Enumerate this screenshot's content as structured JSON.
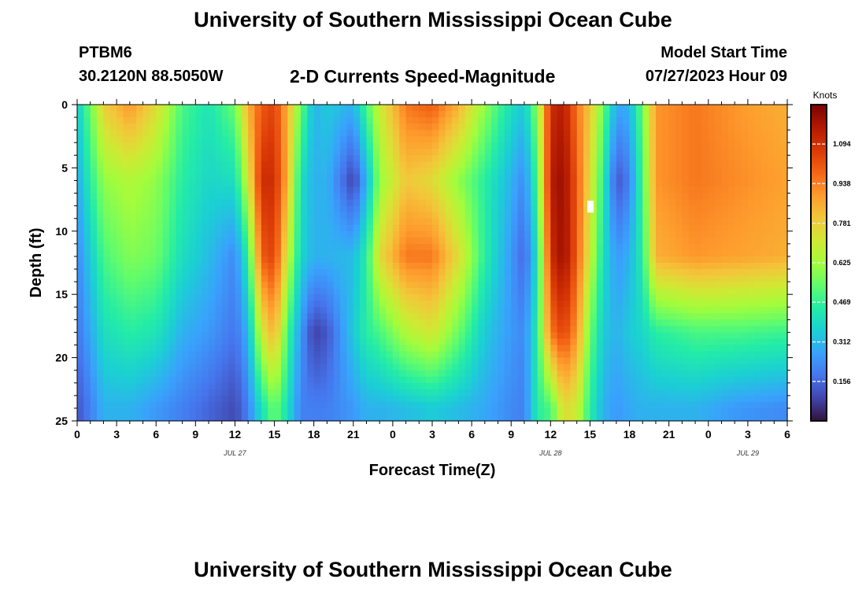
{
  "header": {
    "title": "University of Southern Mississippi Ocean Cube",
    "station": "PTBM6",
    "coords": "30.2120N  88.5050W",
    "subtitle": "2-D Currents Speed-Magnitude",
    "start_label": "Model Start Time",
    "start_value": "07/27/2023 Hour 09"
  },
  "footer": {
    "title": "University of Southern Mississippi Ocean Cube"
  },
  "chart_data": {
    "type": "heatmap",
    "xlabel": "Forecast Time(Z)",
    "ylabel": "Depth (ft)",
    "x_tick_labels": [
      "0",
      "3",
      "6",
      "9",
      "12",
      "15",
      "18",
      "21",
      "0",
      "3",
      "6",
      "9",
      "12",
      "15",
      "18",
      "21",
      "0",
      "3",
      "6"
    ],
    "x_range_hours": [
      0,
      54
    ],
    "day_labels": [
      {
        "label": "JUL 27",
        "at_hour": 12
      },
      {
        "label": "JUL 28",
        "at_hour": 36
      },
      {
        "label": "JUL 29",
        "at_hour": 51
      }
    ],
    "y_ticks": [
      0,
      5,
      10,
      15,
      20,
      25
    ],
    "ylim": [
      0,
      25
    ],
    "y_inverted": true,
    "colorbar": {
      "unit": "Knots",
      "range": [
        0,
        1.25
      ],
      "ticks": [
        "1.094",
        "0.938",
        "0.781",
        "0.625",
        "0.469",
        "0.312",
        "0.156"
      ],
      "colormap": [
        "#30123b",
        "#4145ab",
        "#4675ed",
        "#39a2fc",
        "#1bcfd4",
        "#24eca6",
        "#61fc6c",
        "#a4fc3b",
        "#d1e834",
        "#f3c63a",
        "#fe9b2d",
        "#f36315",
        "#d93806",
        "#b11901",
        "#7a0403"
      ]
    },
    "speed_by_time": [
      {
        "hour": 0,
        "d0": 0.35,
        "d6": 0.28,
        "d12": 0.22,
        "d18": 0.18,
        "d24": 0.12
      },
      {
        "hour": 1,
        "d0": 0.55,
        "d6": 0.45,
        "d12": 0.35,
        "d18": 0.28,
        "d24": 0.2
      },
      {
        "hour": 2,
        "d0": 0.78,
        "d6": 0.6,
        "d12": 0.5,
        "d18": 0.4,
        "d24": 0.3
      },
      {
        "hour": 4,
        "d0": 0.9,
        "d6": 0.65,
        "d12": 0.58,
        "d18": 0.45,
        "d24": 0.3
      },
      {
        "hour": 6,
        "d0": 0.75,
        "d6": 0.6,
        "d12": 0.55,
        "d18": 0.42,
        "d24": 0.25
      },
      {
        "hour": 8,
        "d0": 0.5,
        "d6": 0.45,
        "d12": 0.4,
        "d18": 0.3,
        "d24": 0.2
      },
      {
        "hour": 10,
        "d0": 0.42,
        "d6": 0.38,
        "d12": 0.32,
        "d18": 0.25,
        "d24": 0.15
      },
      {
        "hour": 12,
        "d0": 0.55,
        "d6": 0.4,
        "d12": 0.22,
        "d18": 0.18,
        "d24": 0.1
      },
      {
        "hour": 13,
        "d0": 0.85,
        "d6": 0.7,
        "d12": 0.45,
        "d18": 0.3,
        "d24": 0.2
      },
      {
        "hour": 14,
        "d0": 1.0,
        "d6": 1.1,
        "d12": 1.0,
        "d18": 0.7,
        "d24": 0.4
      },
      {
        "hour": 15,
        "d0": 1.05,
        "d6": 1.1,
        "d12": 1.05,
        "d18": 0.85,
        "d24": 0.55
      },
      {
        "hour": 16,
        "d0": 0.85,
        "d6": 0.85,
        "d12": 0.7,
        "d18": 0.5,
        "d24": 0.4
      },
      {
        "hour": 17,
        "d0": 0.55,
        "d6": 0.4,
        "d12": 0.38,
        "d18": 0.25,
        "d24": 0.2
      },
      {
        "hour": 18,
        "d0": 0.3,
        "d6": 0.3,
        "d12": 0.3,
        "d18": 0.08,
        "d24": 0.2
      },
      {
        "hour": 19,
        "d0": 0.35,
        "d6": 0.3,
        "d12": 0.3,
        "d18": 0.12,
        "d24": 0.2
      },
      {
        "hour": 21,
        "d0": 0.3,
        "d6": 0.08,
        "d12": 0.32,
        "d18": 0.35,
        "d24": 0.25
      },
      {
        "hour": 22,
        "d0": 0.5,
        "d6": 0.3,
        "d12": 0.45,
        "d18": 0.45,
        "d24": 0.3
      },
      {
        "hour": 23,
        "d0": 0.7,
        "d6": 0.6,
        "d12": 0.75,
        "d18": 0.5,
        "d24": 0.3
      },
      {
        "hour": 25,
        "d0": 0.95,
        "d6": 0.8,
        "d12": 0.95,
        "d18": 0.65,
        "d24": 0.32
      },
      {
        "hour": 27,
        "d0": 1.0,
        "d6": 0.75,
        "d12": 0.95,
        "d18": 0.72,
        "d24": 0.35
      },
      {
        "hour": 29,
        "d0": 0.85,
        "d6": 0.6,
        "d12": 0.75,
        "d18": 0.55,
        "d24": 0.32
      },
      {
        "hour": 31,
        "d0": 0.6,
        "d6": 0.45,
        "d12": 0.45,
        "d18": 0.35,
        "d24": 0.28
      },
      {
        "hour": 33,
        "d0": 0.4,
        "d6": 0.3,
        "d12": 0.25,
        "d18": 0.25,
        "d24": 0.22
      },
      {
        "hour": 34,
        "d0": 0.35,
        "d6": 0.22,
        "d12": 0.15,
        "d18": 0.22,
        "d24": 0.2
      },
      {
        "hour": 35,
        "d0": 0.6,
        "d6": 0.5,
        "d12": 0.4,
        "d18": 0.45,
        "d24": 0.45
      },
      {
        "hour": 36,
        "d0": 1.1,
        "d6": 1.15,
        "d12": 1.1,
        "d18": 0.95,
        "d24": 0.5
      },
      {
        "hour": 37,
        "d0": 1.15,
        "d6": 1.2,
        "d12": 1.2,
        "d18": 1.05,
        "d24": 0.75
      },
      {
        "hour": 38,
        "d0": 0.95,
        "d6": 1.0,
        "d12": 1.0,
        "d18": 0.9,
        "d24": 0.7
      },
      {
        "hour": 39,
        "d0": 0.8,
        "d6": 0.75,
        "d12": 0.7,
        "d18": 0.55,
        "d24": 0.45
      },
      {
        "hour": 40,
        "d0": 0.55,
        "d6": 0.45,
        "d12": 0.4,
        "d18": 0.35,
        "d24": 0.3
      },
      {
        "hour": 41,
        "d0": 0.28,
        "d6": 0.12,
        "d12": 0.25,
        "d18": 0.3,
        "d24": 0.25
      },
      {
        "hour": 42,
        "d0": 0.3,
        "d6": 0.2,
        "d12": 0.3,
        "d18": 0.35,
        "d24": 0.28
      },
      {
        "hour": 43,
        "d0": 0.55,
        "d6": 0.5,
        "d12": 0.45,
        "d18": 0.38,
        "d24": 0.3
      },
      {
        "hour": 44,
        "d0": 0.9,
        "d6": 0.9,
        "d12": 0.85,
        "d18": 0.45,
        "d24": 0.3
      },
      {
        "hour": 47,
        "d0": 0.95,
        "d6": 0.95,
        "d12": 0.9,
        "d18": 0.5,
        "d24": 0.3
      },
      {
        "hour": 50,
        "d0": 0.9,
        "d6": 0.92,
        "d12": 0.88,
        "d18": 0.5,
        "d24": 0.25
      },
      {
        "hour": 54,
        "d0": 0.85,
        "d6": 0.88,
        "d12": 0.85,
        "d18": 0.48,
        "d24": 0.22
      }
    ]
  }
}
